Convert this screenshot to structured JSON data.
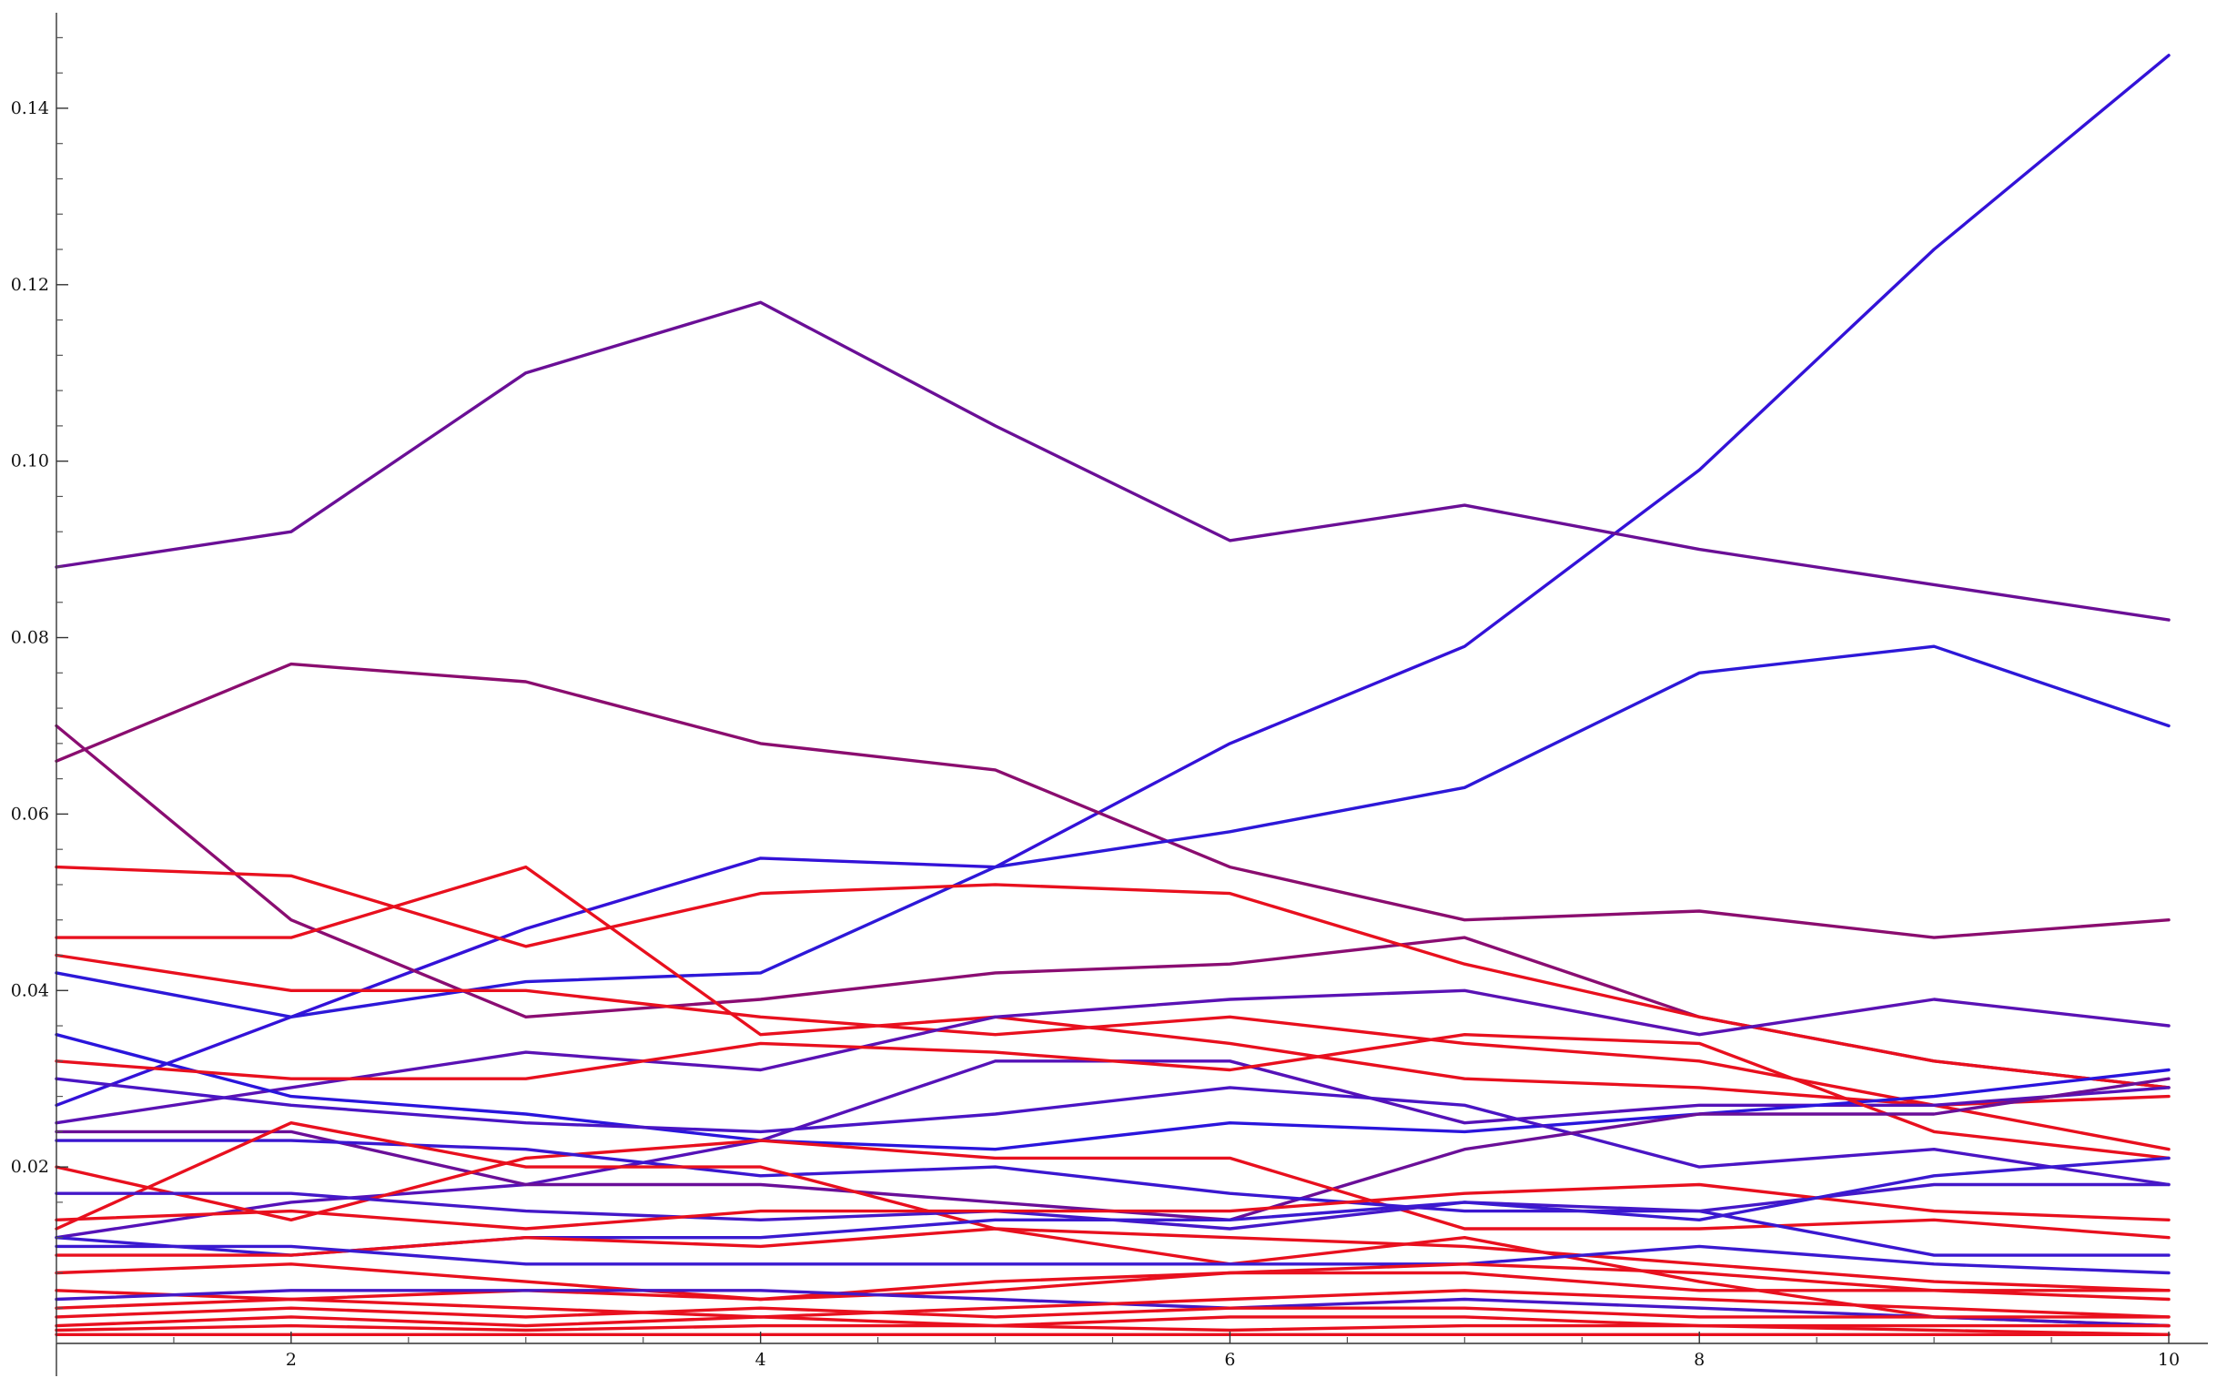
{
  "chart_data": {
    "type": "line",
    "title": "",
    "xlabel": "",
    "ylabel": "",
    "xlim": [
      1,
      10
    ],
    "ylim": [
      0,
      0.15
    ],
    "x": [
      1,
      2,
      3,
      4,
      5,
      6,
      7,
      8,
      9,
      10
    ],
    "x_ticks": [
      "2",
      "4",
      "6",
      "8",
      "10"
    ],
    "y_ticks": [
      "0.02",
      "0.04",
      "0.06",
      "0.08",
      "0.10",
      "0.12",
      "0.14"
    ],
    "grid": false,
    "legend": "none",
    "series": [
      {
        "color": "#3312d8",
        "values": [
          0.027,
          0.037,
          0.047,
          0.055,
          0.054,
          0.068,
          0.079,
          0.099,
          0.124,
          0.146
        ]
      },
      {
        "color": "#6a0f96",
        "values": [
          0.088,
          0.092,
          0.11,
          0.118,
          0.104,
          0.091,
          0.095,
          0.09,
          0.086,
          0.082
        ]
      },
      {
        "color": "#8a0d6f",
        "values": [
          0.066,
          0.077,
          0.075,
          0.068,
          0.065,
          0.054,
          0.048,
          0.049,
          0.046,
          0.048
        ]
      },
      {
        "color": "#8a0d72",
        "values": [
          0.07,
          0.048,
          0.037,
          0.039,
          0.042,
          0.043,
          0.046,
          0.037,
          0.032,
          0.029
        ]
      },
      {
        "color": "#2d18d8",
        "values": [
          0.042,
          0.037,
          0.041,
          0.042,
          0.054,
          0.058,
          0.063,
          0.076,
          0.079,
          0.07
        ]
      },
      {
        "color": "#e8101e",
        "values": [
          0.054,
          0.053,
          0.045,
          0.051,
          0.052,
          0.051,
          0.043,
          0.037,
          0.032,
          0.029
        ]
      },
      {
        "color": "#e8101e",
        "values": [
          0.046,
          0.046,
          0.054,
          0.035,
          0.037,
          0.034,
          0.03,
          0.029,
          0.027,
          0.028
        ]
      },
      {
        "color": "#e8101e",
        "values": [
          0.044,
          0.04,
          0.04,
          0.037,
          0.035,
          0.037,
          0.034,
          0.032,
          0.027,
          0.022
        ]
      },
      {
        "color": "#5a12b4",
        "values": [
          0.025,
          0.029,
          0.033,
          0.031,
          0.037,
          0.039,
          0.04,
          0.035,
          0.039,
          0.036
        ]
      },
      {
        "color": "#5512b8",
        "values": [
          0.012,
          0.016,
          0.018,
          0.023,
          0.032,
          0.032,
          0.025,
          0.027,
          0.027,
          0.029
        ]
      },
      {
        "color": "#2a15dc",
        "values": [
          0.035,
          0.028,
          0.026,
          0.023,
          0.022,
          0.025,
          0.024,
          0.026,
          0.028,
          0.031
        ]
      },
      {
        "color": "#e8101e",
        "values": [
          0.032,
          0.03,
          0.03,
          0.034,
          0.033,
          0.031,
          0.035,
          0.034,
          0.024,
          0.021
        ]
      },
      {
        "color": "#4a15c4",
        "values": [
          0.03,
          0.027,
          0.025,
          0.024,
          0.026,
          0.029,
          0.027,
          0.02,
          0.022,
          0.018
        ]
      },
      {
        "color": "#6a0f98",
        "values": [
          0.024,
          0.024,
          0.018,
          0.018,
          0.016,
          0.014,
          0.022,
          0.026,
          0.026,
          0.03
        ]
      },
      {
        "color": "#e8101e",
        "values": [
          0.02,
          0.014,
          0.021,
          0.023,
          0.021,
          0.021,
          0.013,
          0.013,
          0.014,
          0.012
        ]
      },
      {
        "color": "#3a17d0",
        "values": [
          0.023,
          0.023,
          0.022,
          0.019,
          0.02,
          0.017,
          0.015,
          0.015,
          0.01,
          0.01
        ]
      },
      {
        "color": "#e8101e",
        "values": [
          0.013,
          0.025,
          0.02,
          0.02,
          0.013,
          0.009,
          0.012,
          0.007,
          0.003,
          0.002
        ]
      },
      {
        "color": "#4418c8",
        "values": [
          0.017,
          0.017,
          0.015,
          0.014,
          0.015,
          0.013,
          0.016,
          0.015,
          0.018,
          0.018
        ]
      },
      {
        "color": "#e8101e",
        "values": [
          0.014,
          0.015,
          0.013,
          0.015,
          0.015,
          0.015,
          0.017,
          0.018,
          0.015,
          0.014
        ]
      },
      {
        "color": "#3a1ad0",
        "values": [
          0.012,
          0.01,
          0.012,
          0.012,
          0.014,
          0.014,
          0.016,
          0.014,
          0.019,
          0.021
        ]
      },
      {
        "color": "#e8101e",
        "values": [
          0.01,
          0.01,
          0.012,
          0.011,
          0.013,
          0.012,
          0.011,
          0.009,
          0.007,
          0.006
        ]
      },
      {
        "color": "#3a1ad0",
        "values": [
          0.011,
          0.011,
          0.009,
          0.009,
          0.009,
          0.009,
          0.009,
          0.011,
          0.009,
          0.008
        ]
      },
      {
        "color": "#e8101e",
        "values": [
          0.008,
          0.009,
          0.007,
          0.005,
          0.006,
          0.008,
          0.008,
          0.006,
          0.006,
          0.005
        ]
      },
      {
        "color": "#e8101e",
        "values": [
          0.006,
          0.005,
          0.006,
          0.005,
          0.007,
          0.008,
          0.009,
          0.008,
          0.006,
          0.006
        ]
      },
      {
        "color": "#4518c6",
        "values": [
          0.005,
          0.006,
          0.006,
          0.006,
          0.005,
          0.004,
          0.005,
          0.004,
          0.003,
          0.002
        ]
      },
      {
        "color": "#e8101e",
        "values": [
          0.004,
          0.005,
          0.004,
          0.003,
          0.004,
          0.005,
          0.006,
          0.005,
          0.004,
          0.003
        ]
      },
      {
        "color": "#e8101e",
        "values": [
          0.003,
          0.004,
          0.003,
          0.004,
          0.003,
          0.004,
          0.004,
          0.003,
          0.003,
          0.003
        ]
      },
      {
        "color": "#e8101e",
        "values": [
          0.002,
          0.003,
          0.002,
          0.003,
          0.002,
          0.003,
          0.003,
          0.002,
          0.002,
          0.002
        ]
      },
      {
        "color": "#e8101e",
        "values": [
          0.0015,
          0.002,
          0.0015,
          0.002,
          0.002,
          0.0015,
          0.002,
          0.002,
          0.0015,
          0.001
        ]
      },
      {
        "color": "#e8101e",
        "values": [
          0.001,
          0.001,
          0.001,
          0.001,
          0.001,
          0.001,
          0.001,
          0.001,
          0.001,
          0.001
        ]
      }
    ]
  }
}
